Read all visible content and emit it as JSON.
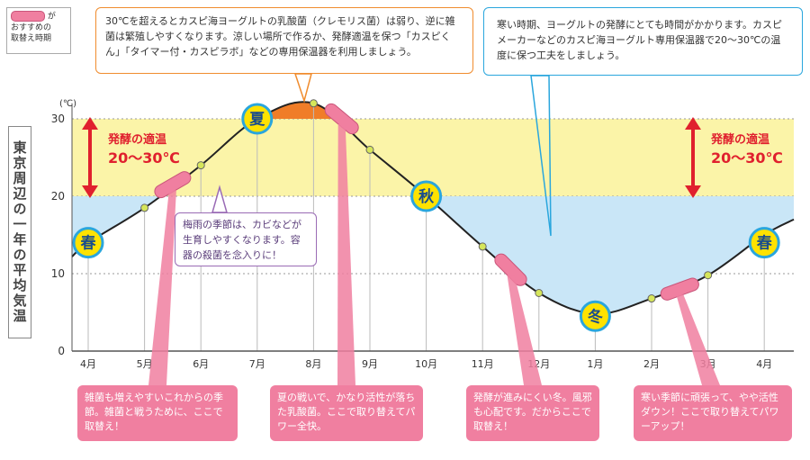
{
  "legend": {
    "line1": "が",
    "line2": "おすすめの",
    "line3": "取替え時期"
  },
  "vertical_title": "東京周辺の一年の平均気温",
  "optimal_label_left": {
    "line1": "発酵の適温",
    "line2": "20〜30℃"
  },
  "optimal_label_right": {
    "line1": "発酵の適温",
    "line2": "20〜30℃"
  },
  "callouts": {
    "top_orange": "30℃を超えるとカスピ海ヨーグルトの乳酸菌（クレモリス菌）は弱り、逆に雑菌は繁殖しやすくなります。涼しい場所で作るか、発酵適温を保つ「カスピくん」「タイマー付・カスピラボ」などの専用保温器を利用しましょう。",
    "top_blue": "寒い時期、ヨーグルトの発酵にとても時間がかかります。カスピメーカーなどのカスピ海ヨーグルト専用保温器で20〜30℃の温度に保つ工夫をしましょう。",
    "rainy": "梅雨の季節は、カビなどが生育しやすくなります。容器の殺菌を念入りに！"
  },
  "pink_boxes": [
    "雑菌も増えやすいこれからの季節。雑菌と戦うために、ここで取替え！",
    "夏の戦いで、かなり活性が落ちた乳酸菌。ここで取り替えてパワー全快。",
    "発酵が進みにくい冬。風邪も心配です。だからここで取替え！",
    "寒い季節に頑張って、やや活性ダウン！ここで取り替えてパワーアップ！"
  ],
  "colors": {
    "optimal_band": "#fbf4a8",
    "cool_fill": "#c9e6f7",
    "hot_fill": "#f07d28",
    "curve": "#222222",
    "pink": "#f07fa0",
    "season_circle_fill": "#ffe200",
    "season_circle_border": "#2aa6dd",
    "optimal_red": "#e0202e"
  },
  "chart_data": {
    "type": "line",
    "title": "東京周辺の一年の平均気温",
    "ylabel": "(℃)",
    "ylim": [
      0,
      30
    ],
    "yticks": [
      0,
      10,
      20,
      30
    ],
    "categories": [
      "4月",
      "5月",
      "6月",
      "7月",
      "8月",
      "9月",
      "10月",
      "11月",
      "12月",
      "1月",
      "2月",
      "3月",
      "4月"
    ],
    "x": [
      0,
      1,
      2,
      3,
      4,
      5,
      6,
      7,
      8,
      9,
      10,
      11,
      12
    ],
    "values": [
      14,
      18.5,
      24,
      30,
      32,
      26,
      20,
      13.5,
      7.5,
      4.8,
      6.8,
      9.8,
      15
    ],
    "optimal_band": [
      20,
      30
    ],
    "season_labels": [
      {
        "label": "春",
        "x": 0,
        "y": 14
      },
      {
        "label": "夏",
        "x": 3,
        "y": 30
      },
      {
        "label": "秋",
        "x": 6,
        "y": 20
      },
      {
        "label": "冬",
        "x": 9,
        "y": 4.5
      },
      {
        "label": "春",
        "x": 12,
        "y": 14
      }
    ],
    "recommended_replacement": [
      {
        "x": 1.5,
        "y": 21.5
      },
      {
        "x": 4.5,
        "y": 30
      },
      {
        "x": 7.5,
        "y": 10.5
      },
      {
        "x": 10.5,
        "y": 8
      }
    ],
    "grid": true
  }
}
